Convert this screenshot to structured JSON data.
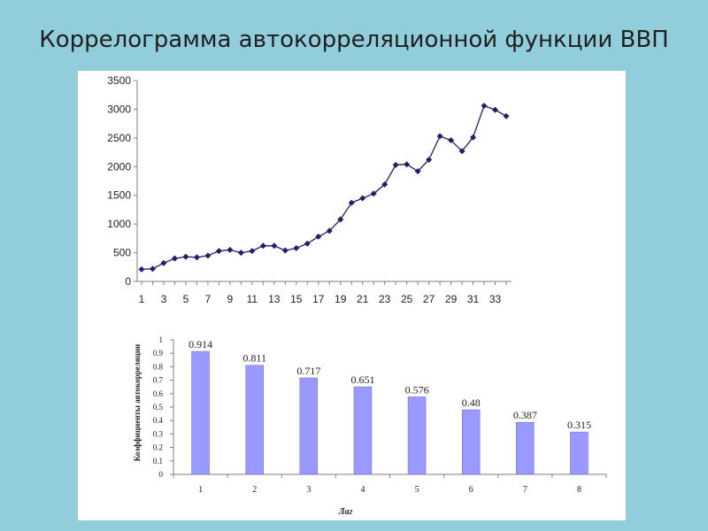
{
  "slide": {
    "title": "Коррелограмма автокорреляционной функции ВВП"
  },
  "colors": {
    "background": "#92cddc",
    "panel": "#ffffff",
    "line_series": "#1f1f6b",
    "bars": "#9999ff",
    "bar_border": "#6666cc"
  },
  "chart_data": [
    {
      "type": "line",
      "title": "",
      "xlabel": "",
      "ylabel": "",
      "x": [
        1,
        2,
        3,
        4,
        5,
        6,
        7,
        8,
        9,
        10,
        11,
        12,
        13,
        14,
        15,
        16,
        17,
        18,
        19,
        20,
        21,
        22,
        23,
        24,
        25,
        26,
        27,
        28,
        29,
        30,
        31,
        32,
        33,
        34
      ],
      "y": [
        210,
        220,
        320,
        400,
        430,
        420,
        450,
        530,
        550,
        500,
        530,
        620,
        620,
        540,
        580,
        660,
        780,
        880,
        1080,
        1370,
        1450,
        1530,
        1690,
        2030,
        2040,
        1920,
        2120,
        2530,
        2460,
        2270,
        2510,
        3060,
        2990,
        2880
      ],
      "xtick_labels": [
        "1",
        "3",
        "5",
        "7",
        "9",
        "11",
        "13",
        "15",
        "17",
        "19",
        "21",
        "23",
        "25",
        "27",
        "29",
        "31",
        "33"
      ],
      "ytick_labels": [
        "0",
        "500",
        "1000",
        "1500",
        "2000",
        "2500",
        "3000",
        "3500"
      ],
      "ylim": [
        0,
        3500
      ],
      "grid": false,
      "legend": "none"
    },
    {
      "type": "bar",
      "title": "",
      "xlabel": "Лаг",
      "ylabel": "Коэффициенты автокорреляции",
      "categories": [
        "1",
        "2",
        "3",
        "4",
        "5",
        "6",
        "7",
        "8"
      ],
      "values": [
        0.914,
        0.811,
        0.717,
        0.651,
        0.576,
        0.48,
        0.387,
        0.315
      ],
      "value_labels": [
        "0.914",
        "0.811",
        "0.717",
        "0.651",
        "0.576",
        "0.48",
        "0.387",
        "0.315"
      ],
      "ytick_labels": [
        "0",
        "0.1",
        "0.2",
        "0.3",
        "0.4",
        "0.5",
        "0.6",
        "0.7",
        "0.8",
        "0.9",
        "1"
      ],
      "ylim": [
        0,
        1
      ],
      "grid": false,
      "legend": "none"
    }
  ]
}
